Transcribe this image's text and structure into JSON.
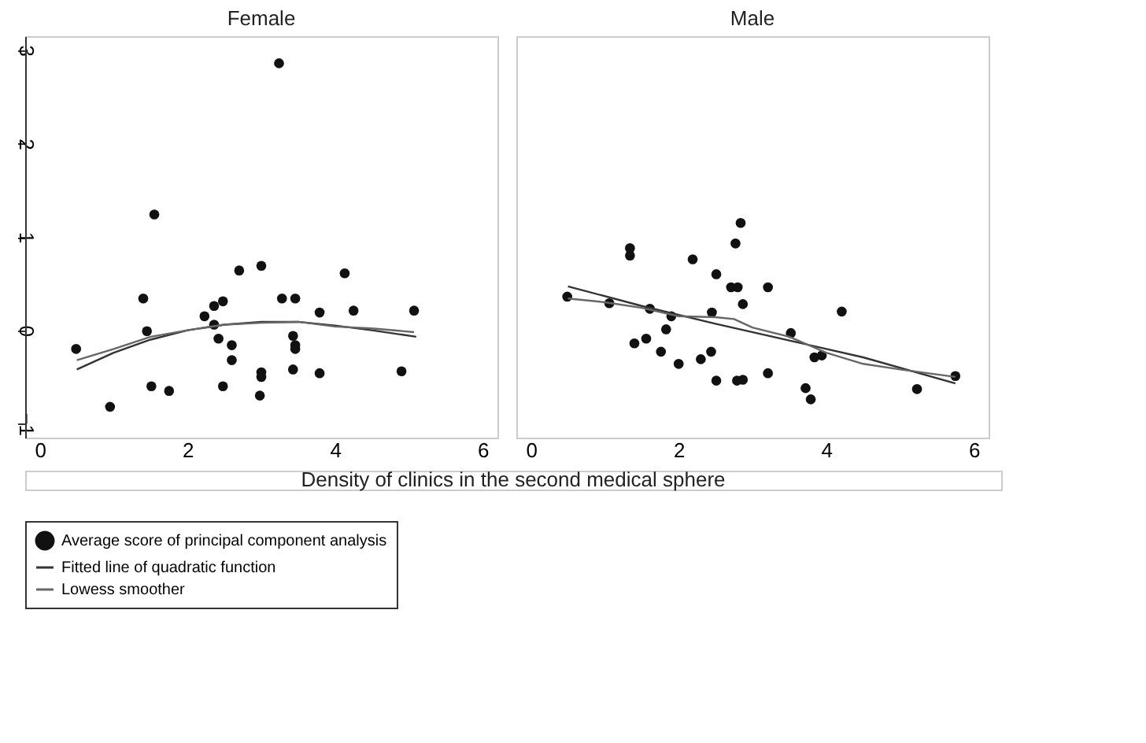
{
  "chart_data": [
    {
      "type": "scatter",
      "title": "Female",
      "xlabel": "Density of clinics in the second medical sphere",
      "xlim": [
        -0.2,
        6.2
      ],
      "ylim": [
        -1.15,
        3.15
      ],
      "xticks": [
        0,
        2,
        4,
        6
      ],
      "yticks": [
        -1,
        0,
        1,
        2,
        3
      ],
      "grid": false,
      "legend": "bottom",
      "marker": "circle",
      "series": [
        {
          "name": "Average score of principal component analysis",
          "type": "scatter",
          "color": "#111111",
          "x": [
            0.49,
            0.95,
            1.4,
            1.45,
            1.55,
            1.51,
            1.75,
            2.23,
            2.36,
            2.48,
            2.36,
            2.42,
            2.48,
            2.6,
            2.6,
            2.7,
            3.0,
            3.0,
            3.0,
            2.98,
            3.24,
            3.28,
            3.46,
            3.43,
            3.46,
            3.46,
            3.43,
            3.79,
            3.79,
            4.13,
            4.25,
            4.9,
            5.07
          ],
          "values": [
            -0.2,
            -0.82,
            0.34,
            -0.01,
            1.24,
            -0.6,
            -0.65,
            0.15,
            0.26,
            0.31,
            0.06,
            -0.09,
            -0.6,
            -0.16,
            -0.32,
            0.64,
            0.69,
            -0.45,
            -0.5,
            -0.7,
            2.86,
            0.34,
            0.34,
            -0.06,
            -0.16,
            -0.2,
            -0.42,
            0.19,
            -0.46,
            0.61,
            0.21,
            -0.44,
            0.21
          ]
        },
        {
          "name": "Fitted line of quadratic function",
          "type": "line",
          "marker": "none",
          "color": "#333333",
          "x": [
            0.5,
            1,
            1.5,
            2,
            2.5,
            3,
            3.5,
            4,
            4.5,
            5.1
          ],
          "values": [
            -0.42,
            -0.24,
            -0.1,
            0.0,
            0.06,
            0.09,
            0.09,
            0.05,
            0.0,
            -0.07
          ]
        },
        {
          "name": "Lowess smoother",
          "type": "line",
          "marker": "none",
          "color": "#666666",
          "x": [
            0.5,
            1,
            1.5,
            2,
            2.5,
            3,
            3.5,
            4,
            4.5,
            5.07
          ],
          "values": [
            -0.32,
            -0.2,
            -0.07,
            0.0,
            0.06,
            0.08,
            0.09,
            0.04,
            0.02,
            -0.02
          ]
        }
      ]
    },
    {
      "type": "scatter",
      "title": "Male",
      "xlim": [
        -0.2,
        6.2
      ],
      "ylim": [
        -1.15,
        3.15
      ],
      "xticks": [
        0,
        2,
        4,
        6
      ],
      "yticks": [
        -1,
        0,
        1,
        2,
        3
      ],
      "tick_labels": "x",
      "grid": false,
      "legend": "bottom",
      "marker": "circle",
      "series": [
        {
          "name": "Average score of principal component analysis",
          "type": "scatter",
          "color": "#111111",
          "x": [
            0.49,
            1.06,
            1.34,
            1.34,
            1.4,
            1.56,
            1.61,
            1.76,
            1.83,
            1.9,
            2.0,
            2.19,
            2.3,
            2.44,
            2.45,
            2.51,
            2.51,
            2.71,
            2.8,
            2.77,
            2.84,
            2.87,
            2.79,
            2.87,
            3.21,
            3.21,
            3.52,
            3.72,
            3.79,
            3.84,
            3.94,
            4.21,
            5.23,
            5.75
          ],
          "values": [
            0.36,
            0.29,
            0.88,
            0.8,
            -0.14,
            -0.09,
            0.23,
            -0.23,
            0.01,
            0.15,
            -0.36,
            0.76,
            -0.31,
            -0.23,
            0.19,
            0.6,
            -0.54,
            0.46,
            0.46,
            0.93,
            1.15,
            0.28,
            -0.54,
            -0.53,
            0.46,
            -0.46,
            -0.03,
            -0.62,
            -0.74,
            -0.29,
            -0.27,
            0.2,
            -0.63,
            -0.49
          ]
        },
        {
          "name": "Fitted line of quadratic function",
          "type": "line",
          "marker": "none",
          "color": "#333333",
          "x": [
            0.5,
            1.5,
            2.5,
            3.5,
            4.5,
            5.75
          ],
          "values": [
            0.47,
            0.26,
            0.07,
            -0.11,
            -0.29,
            -0.57
          ]
        },
        {
          "name": "Lowess smoother",
          "type": "line",
          "marker": "none",
          "color": "#666666",
          "x": [
            0.5,
            1,
            1.5,
            2,
            2.5,
            2.75,
            3,
            3.5,
            4,
            4.5,
            5,
            5.75
          ],
          "values": [
            0.34,
            0.3,
            0.24,
            0.15,
            0.14,
            0.12,
            0.03,
            -0.07,
            -0.24,
            -0.36,
            -0.42,
            -0.5
          ]
        }
      ]
    }
  ]
}
